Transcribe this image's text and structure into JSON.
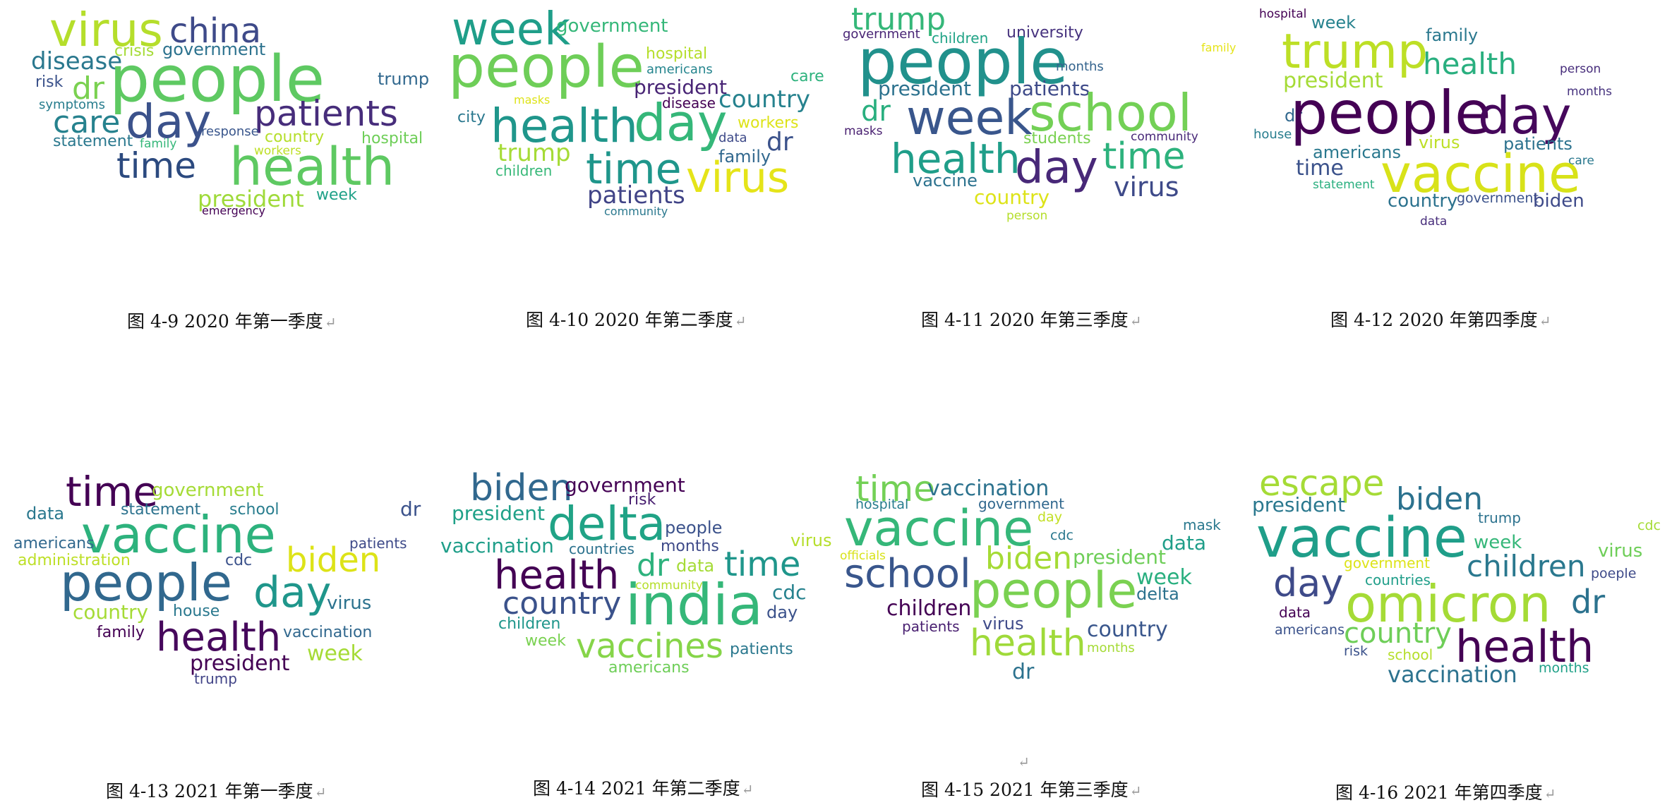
{
  "return_mark": "↵",
  "figures": [
    {
      "caption": "图 4-9  2020 年第一季度",
      "words": [
        {
          "text": "virus",
          "color": "#b5de2b"
        },
        {
          "text": "china",
          "color": "#3e4a89"
        },
        {
          "text": "disease",
          "color": "#2a788e"
        },
        {
          "text": "crisis",
          "color": "#a5db36"
        },
        {
          "text": "government",
          "color": "#2c728e"
        },
        {
          "text": "people",
          "color": "#5ec962"
        },
        {
          "text": "risk",
          "color": "#3b528b"
        },
        {
          "text": "dr",
          "color": "#7ad151"
        },
        {
          "text": "trump",
          "color": "#31688e"
        },
        {
          "text": "symptoms",
          "color": "#287d8e"
        },
        {
          "text": "care",
          "color": "#26828e"
        },
        {
          "text": "day",
          "color": "#3b528b"
        },
        {
          "text": "patients",
          "color": "#472d7b"
        },
        {
          "text": "statement",
          "color": "#2a788e"
        },
        {
          "text": "family",
          "color": "#35b779"
        },
        {
          "text": "response",
          "color": "#39568c"
        },
        {
          "text": "country",
          "color": "#b5de2b"
        },
        {
          "text": "hospital",
          "color": "#6ece58"
        },
        {
          "text": "workers",
          "color": "#bddf26"
        },
        {
          "text": "time",
          "color": "#2c4a7f"
        },
        {
          "text": "health",
          "color": "#5ec962"
        },
        {
          "text": "president",
          "color": "#9fda3a"
        },
        {
          "text": "week",
          "color": "#1fa188"
        },
        {
          "text": "emergency",
          "color": "#440154"
        }
      ]
    },
    {
      "caption": "图 4-10  2020 年第二季度",
      "words": [
        {
          "text": "week",
          "color": "#1f9e89"
        },
        {
          "text": "government",
          "color": "#35b779"
        },
        {
          "text": "people",
          "color": "#6ece58"
        },
        {
          "text": "hospital",
          "color": "#b5de2b"
        },
        {
          "text": "americans",
          "color": "#25858e"
        },
        {
          "text": "care",
          "color": "#2db27d"
        },
        {
          "text": "masks",
          "color": "#dde318"
        },
        {
          "text": "president",
          "color": "#482475"
        },
        {
          "text": "country",
          "color": "#26828e"
        },
        {
          "text": "disease",
          "color": "#440154"
        },
        {
          "text": "city",
          "color": "#2a788e"
        },
        {
          "text": "health",
          "color": "#1f968b"
        },
        {
          "text": "day",
          "color": "#35b779"
        },
        {
          "text": "workers",
          "color": "#dde318"
        },
        {
          "text": "data",
          "color": "#3e4a89"
        },
        {
          "text": "dr",
          "color": "#3b528b"
        },
        {
          "text": "trump",
          "color": "#a5db36"
        },
        {
          "text": "family",
          "color": "#31688e"
        },
        {
          "text": "children",
          "color": "#37b878"
        },
        {
          "text": "time",
          "color": "#1f968b"
        },
        {
          "text": "virus",
          "color": "#e5e419"
        },
        {
          "text": "patients",
          "color": "#414487"
        },
        {
          "text": "community",
          "color": "#2a788e"
        }
      ]
    },
    {
      "caption": "图 4-11  2020 年第三季度",
      "words": [
        {
          "text": "trump",
          "color": "#35b779"
        },
        {
          "text": "government",
          "color": "#482475"
        },
        {
          "text": "children",
          "color": "#20a386"
        },
        {
          "text": "university",
          "color": "#46327e"
        },
        {
          "text": "family",
          "color": "#e5e419"
        },
        {
          "text": "people",
          "color": "#21918c"
        },
        {
          "text": "months",
          "color": "#33638d"
        },
        {
          "text": "president",
          "color": "#2c728e"
        },
        {
          "text": "patients",
          "color": "#3e4a89"
        },
        {
          "text": "dr",
          "color": "#29af7f"
        },
        {
          "text": "school",
          "color": "#73d056"
        },
        {
          "text": "week",
          "color": "#39568c"
        },
        {
          "text": "masks",
          "color": "#481f70"
        },
        {
          "text": "students",
          "color": "#7ad151"
        },
        {
          "text": "community",
          "color": "#482878"
        },
        {
          "text": "health",
          "color": "#1f9e89"
        },
        {
          "text": "day",
          "color": "#482878"
        },
        {
          "text": "time",
          "color": "#2db27d"
        },
        {
          "text": "vaccine",
          "color": "#2c728e"
        },
        {
          "text": "virus",
          "color": "#3e4a89"
        },
        {
          "text": "country",
          "color": "#dde318"
        },
        {
          "text": "person",
          "color": "#b5de2b"
        }
      ]
    },
    {
      "caption": "图 4-12  2020 年第四季度",
      "words": [
        {
          "text": "hospital",
          "color": "#440154"
        },
        {
          "text": "week",
          "color": "#26828e"
        },
        {
          "text": "trump",
          "color": "#bddf26"
        },
        {
          "text": "family",
          "color": "#2a788e"
        },
        {
          "text": "health",
          "color": "#29af7f"
        },
        {
          "text": "person",
          "color": "#472d7b"
        },
        {
          "text": "president",
          "color": "#a5db36"
        },
        {
          "text": "months",
          "color": "#46327e"
        },
        {
          "text": "dr",
          "color": "#31688e"
        },
        {
          "text": "people",
          "color": "#440154"
        },
        {
          "text": "day",
          "color": "#46085c"
        },
        {
          "text": "house",
          "color": "#287d8e"
        },
        {
          "text": "virus",
          "color": "#bddf26"
        },
        {
          "text": "patients",
          "color": "#2c728e"
        },
        {
          "text": "americans",
          "color": "#2a788e"
        },
        {
          "text": "care",
          "color": "#2a788e"
        },
        {
          "text": "time",
          "color": "#3b528b"
        },
        {
          "text": "vaccine",
          "color": "#d8e219"
        },
        {
          "text": "statement",
          "color": "#29af7f"
        },
        {
          "text": "country",
          "color": "#2c728e"
        },
        {
          "text": "government",
          "color": "#3b528b"
        },
        {
          "text": "biden",
          "color": "#3e4a89"
        },
        {
          "text": "data",
          "color": "#472d7b"
        }
      ]
    },
    {
      "caption": "图 4-13  2021 年第一季度",
      "words": [
        {
          "text": "time",
          "color": "#440154"
        },
        {
          "text": "government",
          "color": "#a5db36"
        },
        {
          "text": "dr",
          "color": "#3b528b"
        },
        {
          "text": "data",
          "color": "#2a788e"
        },
        {
          "text": "statement",
          "color": "#2c728e"
        },
        {
          "text": "school",
          "color": "#287d8e"
        },
        {
          "text": "vaccine",
          "color": "#2db27d"
        },
        {
          "text": "patients",
          "color": "#3e4a89"
        },
        {
          "text": "americans",
          "color": "#31688e"
        },
        {
          "text": "administration",
          "color": "#bddf26"
        },
        {
          "text": "cdc",
          "color": "#3b528b"
        },
        {
          "text": "biden",
          "color": "#dde318"
        },
        {
          "text": "people",
          "color": "#31688e"
        },
        {
          "text": "day",
          "color": "#1f968b"
        },
        {
          "text": "virus",
          "color": "#2c728e"
        },
        {
          "text": "country",
          "color": "#a5db36"
        },
        {
          "text": "house",
          "color": "#2a788e"
        },
        {
          "text": "family",
          "color": "#440154"
        },
        {
          "text": "health",
          "color": "#46085c"
        },
        {
          "text": "vaccination",
          "color": "#31688e"
        },
        {
          "text": "president",
          "color": "#440154"
        },
        {
          "text": "week",
          "color": "#a5db36"
        },
        {
          "text": "trump",
          "color": "#414487"
        }
      ]
    },
    {
      "caption": "图 4-14  2021 年第二季度",
      "words": [
        {
          "text": "biden",
          "color": "#31688e"
        },
        {
          "text": "government",
          "color": "#440154"
        },
        {
          "text": "risk",
          "color": "#481f70"
        },
        {
          "text": "president",
          "color": "#1fa188"
        },
        {
          "text": "delta",
          "color": "#20a386"
        },
        {
          "text": "people",
          "color": "#3b528b"
        },
        {
          "text": "virus",
          "color": "#b5de2b"
        },
        {
          "text": "vaccination",
          "color": "#1f9e89"
        },
        {
          "text": "countries",
          "color": "#2c728e"
        },
        {
          "text": "months",
          "color": "#3e4a89"
        },
        {
          "text": "health",
          "color": "#440154"
        },
        {
          "text": "dr",
          "color": "#2db27d"
        },
        {
          "text": "data",
          "color": "#a5db36"
        },
        {
          "text": "time",
          "color": "#1f968b"
        },
        {
          "text": "community",
          "color": "#b5de2b"
        },
        {
          "text": "country",
          "color": "#3b528b"
        },
        {
          "text": "india",
          "color": "#35b779"
        },
        {
          "text": "cdc",
          "color": "#26828e"
        },
        {
          "text": "children",
          "color": "#1f968b"
        },
        {
          "text": "day",
          "color": "#3b528b"
        },
        {
          "text": "week",
          "color": "#7ad151"
        },
        {
          "text": "vaccines",
          "color": "#86d549"
        },
        {
          "text": "patients",
          "color": "#2a788e"
        },
        {
          "text": "americans",
          "color": "#6ece58"
        }
      ]
    },
    {
      "caption": "图 4-15  2021 年第三季度",
      "words": [
        {
          "text": "time",
          "color": "#73d056"
        },
        {
          "text": "vaccination",
          "color": "#2c728e"
        },
        {
          "text": "hospital",
          "color": "#287d8e"
        },
        {
          "text": "government",
          "color": "#31688e"
        },
        {
          "text": "day",
          "color": "#c2df23"
        },
        {
          "text": "mask",
          "color": "#2a788e"
        },
        {
          "text": "vaccine",
          "color": "#35b779"
        },
        {
          "text": "cdc",
          "color": "#2a788e"
        },
        {
          "text": "data",
          "color": "#1f9e89"
        },
        {
          "text": "officials",
          "color": "#d8e219"
        },
        {
          "text": "biden",
          "color": "#a5db36"
        },
        {
          "text": "president",
          "color": "#6ece58"
        },
        {
          "text": "school",
          "color": "#39568c"
        },
        {
          "text": "week",
          "color": "#29af7f"
        },
        {
          "text": "people",
          "color": "#7ad151"
        },
        {
          "text": "delta",
          "color": "#2c728e"
        },
        {
          "text": "children",
          "color": "#440154"
        },
        {
          "text": "virus",
          "color": "#3e4a89"
        },
        {
          "text": "country",
          "color": "#39568c"
        },
        {
          "text": "patients",
          "color": "#481f70"
        },
        {
          "text": "health",
          "color": "#9fda3a"
        },
        {
          "text": "months",
          "color": "#a5db36"
        },
        {
          "text": "dr",
          "color": "#2c728e"
        }
      ]
    },
    {
      "caption": "图 4-16  2021 年第四季度",
      "words": [
        {
          "text": "escape",
          "color": "#a5db36"
        },
        {
          "text": "president",
          "color": "#2a788e"
        },
        {
          "text": "biden",
          "color": "#2c728e"
        },
        {
          "text": "trump",
          "color": "#2c728e"
        },
        {
          "text": "cdc",
          "color": "#a5db36"
        },
        {
          "text": "vaccine",
          "color": "#1f9e89"
        },
        {
          "text": "week",
          "color": "#35b779"
        },
        {
          "text": "virus",
          "color": "#6ece58"
        },
        {
          "text": "government",
          "color": "#dde318"
        },
        {
          "text": "children",
          "color": "#2a788e"
        },
        {
          "text": "poeple",
          "color": "#3e4a89"
        },
        {
          "text": "day",
          "color": "#3e4a89"
        },
        {
          "text": "countries",
          "color": "#1f9e89"
        },
        {
          "text": "omicron",
          "color": "#a5db36"
        },
        {
          "text": "dr",
          "color": "#2c728e"
        },
        {
          "text": "data",
          "color": "#440154"
        },
        {
          "text": "americans",
          "color": "#3b528b"
        },
        {
          "text": "country",
          "color": "#6ece58"
        },
        {
          "text": "health",
          "color": "#440154"
        },
        {
          "text": "risk",
          "color": "#3b528b"
        },
        {
          "text": "school",
          "color": "#b5de2b"
        },
        {
          "text": "months",
          "color": "#1fa188"
        },
        {
          "text": "vaccination",
          "color": "#2c728e"
        }
      ]
    }
  ]
}
